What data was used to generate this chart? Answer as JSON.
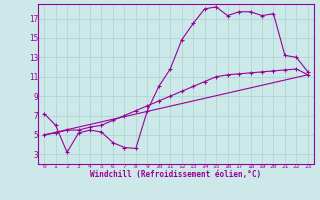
{
  "xlabel": "Windchill (Refroidissement éolien,°C)",
  "bg_color": "#cce8e8",
  "line_color": "#990099",
  "grid_color": "#b0d4d4",
  "xlim": [
    -0.5,
    23.5
  ],
  "ylim": [
    2,
    18.5
  ],
  "yticks": [
    3,
    5,
    7,
    9,
    11,
    13,
    15,
    17
  ],
  "xticks": [
    0,
    1,
    2,
    3,
    4,
    5,
    6,
    7,
    8,
    9,
    10,
    11,
    12,
    13,
    14,
    15,
    16,
    17,
    18,
    19,
    20,
    21,
    22,
    23
  ],
  "line1_x": [
    0,
    1,
    2,
    3,
    4,
    5,
    6,
    7,
    8,
    9,
    10,
    11,
    12,
    13,
    14,
    15,
    16,
    17,
    18,
    19,
    20,
    21,
    22,
    23
  ],
  "line1_y": [
    7.2,
    6.0,
    3.2,
    5.2,
    5.5,
    5.3,
    4.2,
    3.7,
    3.6,
    7.5,
    10.0,
    11.8,
    14.8,
    16.5,
    18.0,
    18.2,
    17.3,
    17.7,
    17.7,
    17.3,
    17.5,
    13.2,
    13.0,
    11.5
  ],
  "line2_x": [
    0,
    1,
    2,
    3,
    4,
    5,
    6,
    7,
    8,
    9,
    10,
    11,
    12,
    13,
    14,
    15,
    16,
    17,
    18,
    19,
    20,
    21,
    22,
    23
  ],
  "line2_y": [
    5.0,
    5.2,
    5.5,
    5.5,
    5.8,
    6.0,
    6.5,
    7.0,
    7.5,
    8.0,
    8.5,
    9.0,
    9.5,
    10.0,
    10.5,
    11.0,
    11.2,
    11.3,
    11.4,
    11.5,
    11.6,
    11.7,
    11.8,
    11.2
  ],
  "line3_x": [
    0,
    23
  ],
  "line3_y": [
    5.0,
    11.2
  ]
}
